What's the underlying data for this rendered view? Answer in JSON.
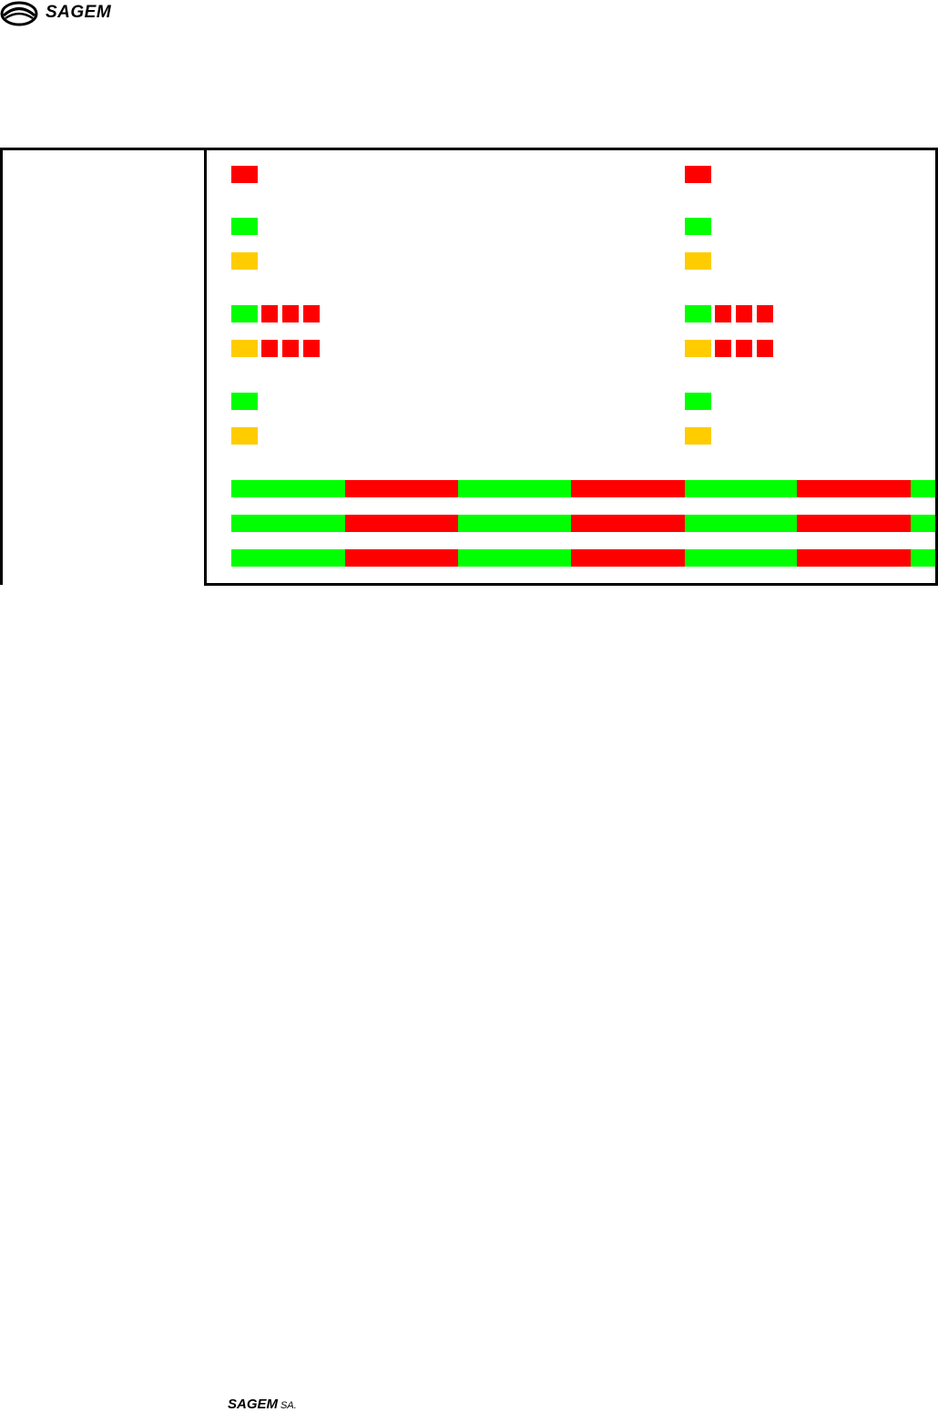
{
  "header": {
    "logo_text": "SAGEM",
    "logo_icon": "sagem-eye-logo"
  },
  "footer": {
    "brand": "SAGEM",
    "suffix": "SA."
  },
  "colors": {
    "red": "#ff0000",
    "green": "#00ff00",
    "amber": "#ffcc00",
    "border": "#000000"
  },
  "table": {
    "rows": [
      {
        "left": [
          "red"
        ],
        "right": [
          "red"
        ]
      },
      {
        "left": [
          "green"
        ],
        "right": [
          "green"
        ]
      },
      {
        "left": [
          "amber"
        ],
        "right": [
          "amber"
        ]
      },
      {
        "left": [
          "green",
          "red",
          "red",
          "red"
        ],
        "right": [
          "green",
          "red",
          "red",
          "red"
        ]
      },
      {
        "left": [
          "amber",
          "red",
          "red",
          "red"
        ],
        "right": [
          "amber",
          "red",
          "red",
          "red"
        ]
      },
      {
        "left": [
          "green"
        ],
        "right": [
          "green"
        ]
      },
      {
        "left": [
          "amber"
        ],
        "right": [
          "amber"
        ]
      }
    ],
    "blink_bars": [
      [
        "green",
        "red",
        "green",
        "red",
        "green",
        "red",
        "green"
      ],
      [
        "green",
        "red",
        "green",
        "red",
        "green",
        "red",
        "green"
      ],
      [
        "green",
        "red",
        "green",
        "red",
        "green",
        "red",
        "green"
      ]
    ]
  }
}
